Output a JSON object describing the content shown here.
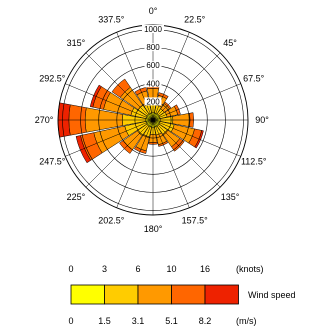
{
  "chart_data": {
    "type": "wind-rose",
    "directions": [
      "0°",
      "22.5°",
      "45°",
      "67.5°",
      "90°",
      "112.5°",
      "135°",
      "157.5°",
      "180°",
      "202.5°",
      "225°",
      "247.5°",
      "270°",
      "292.5°",
      "315°",
      "337.5°"
    ],
    "radial_ticks": [
      "200",
      "400",
      "600",
      "800",
      "1000"
    ],
    "radial_max": 1050,
    "speed_bins_knots": [
      "0",
      "3",
      "6",
      "10",
      "16"
    ],
    "speed_bins_ms": [
      "0",
      "1.5",
      "3.1",
      "5.1",
      "8.2"
    ],
    "knots_unit": "(knots)",
    "ms_unit": "(m/s)",
    "legend_title": "Wind speed",
    "bin_colors": [
      "#ffff00",
      "#ffcc00",
      "#ff9900",
      "#ff6600",
      "#ee2200"
    ],
    "series": [
      {
        "bin": "0-1.5",
        "values": [
          80,
          80,
          80,
          80,
          80,
          80,
          80,
          80,
          80,
          80,
          80,
          80,
          80,
          80,
          80,
          80
        ]
      },
      {
        "bin": "1.5-3.1",
        "values": [
          110,
          90,
          70,
          80,
          140,
          160,
          110,
          90,
          80,
          110,
          130,
          240,
          260,
          170,
          120,
          100
        ]
      },
      {
        "bin": "3.1-5.1",
        "values": [
          160,
          110,
          70,
          120,
          190,
          230,
          170,
          110,
          90,
          160,
          190,
          350,
          410,
          310,
          240,
          150
        ]
      },
      {
        "bin": "5.1-8.2",
        "values": [
          40,
          30,
          20,
          30,
          40,
          80,
          60,
          20,
          20,
          30,
          50,
          150,
          180,
          120,
          110,
          40
        ]
      },
      {
        "bin": "8.2+",
        "values": [
          0,
          0,
          0,
          0,
          0,
          20,
          0,
          0,
          0,
          0,
          0,
          50,
          120,
          30,
          0,
          0
        ]
      }
    ]
  }
}
